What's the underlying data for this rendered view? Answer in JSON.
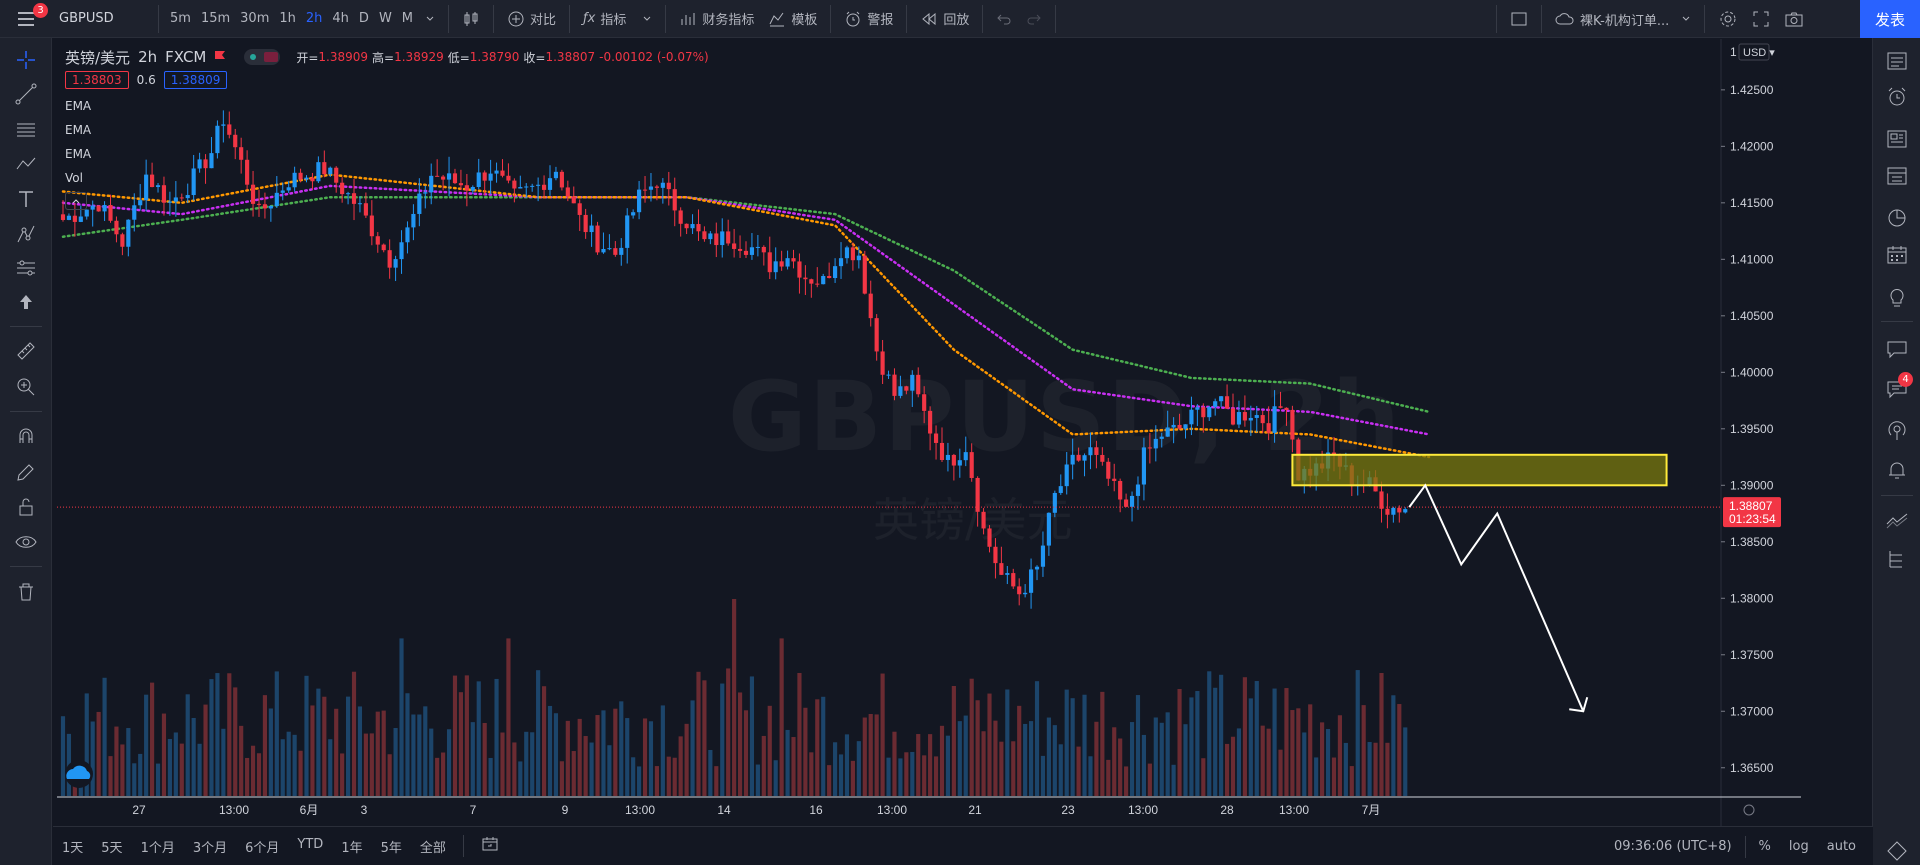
{
  "toolbar": {
    "menu_badge": "3",
    "symbol": "GBPUSD",
    "intervals": [
      "5m",
      "15m",
      "30m",
      "1h",
      "2h",
      "4h",
      "D",
      "W",
      "M"
    ],
    "active_interval": "2h",
    "compare": "对比",
    "indicators": "指标",
    "financials": "财务指标",
    "templates": "模板",
    "alert": "警报",
    "replay": "回放",
    "layout_name": "裸K-机构订单...",
    "publish": "发表"
  },
  "legend": {
    "symbol_name": "英镑/美元",
    "interval": "2h",
    "exchange": "FXCM",
    "open_label": "开=",
    "open": "1.38909",
    "high_label": "高=",
    "high": "1.38929",
    "low_label": "低=",
    "low": "1.38790",
    "close_label": "收=",
    "close": "1.38807",
    "change": "-0.00102 (-0.07%)",
    "bid": "1.38803",
    "spread": "0.6",
    "ask": "1.38809",
    "indicators": [
      "EMA",
      "EMA",
      "EMA",
      "Vol"
    ]
  },
  "watermark": {
    "symbol": "GBPUSD, 2h",
    "name": "英镑/美元"
  },
  "price_axis": {
    "currency": "USD",
    "scale_label": "1",
    "labels": [
      "1.42500",
      "1.42000",
      "1.41500",
      "1.41000",
      "1.40500",
      "1.40000",
      "1.39500",
      "1.39000",
      "1.38500",
      "1.38000",
      "1.37500",
      "1.37000",
      "1.36500"
    ],
    "current_price": "1.38807",
    "countdown": "01:23:54"
  },
  "time_axis": {
    "labels": [
      "27",
      "13:00",
      "6月",
      "3",
      "7",
      "9",
      "13:00",
      "14",
      "16",
      "13:00",
      "21",
      "23",
      "13:00",
      "28",
      "13:00",
      "7月"
    ]
  },
  "bottom": {
    "ranges": [
      "1天",
      "5天",
      "1个月",
      "3个月",
      "6个月",
      "YTD",
      "1年",
      "5年",
      "全部"
    ],
    "time": "09:36:06 (UTC+8)",
    "percent": "%",
    "log": "log",
    "auto": "auto"
  },
  "right_sidebar": {
    "notification_badge": "4"
  },
  "colors": {
    "up": "#2196f3",
    "down": "#f23645",
    "ema_fast": "#ff9800",
    "ema_mid": "#c82ff2",
    "ema_slow": "#4caf50",
    "zone_fill": "#7a7a0e",
    "zone_border": "#ffeb3b"
  },
  "chart_data": {
    "type": "candlestick",
    "symbol": "GBPUSD",
    "interval": "2h",
    "ylim": [
      1.3625,
      1.4295
    ],
    "close_path": [
      [
        0,
        1.4135
      ],
      [
        6,
        1.415
      ],
      [
        10,
        1.4115
      ],
      [
        14,
        1.4175
      ],
      [
        18,
        1.415
      ],
      [
        21,
        1.4165
      ],
      [
        25,
        1.4195
      ],
      [
        27,
        1.4225
      ],
      [
        30,
        1.4185
      ],
      [
        33,
        1.414
      ],
      [
        38,
        1.417
      ],
      [
        44,
        1.418
      ],
      [
        50,
        1.4145
      ],
      [
        55,
        1.41
      ],
      [
        58,
        1.4125
      ],
      [
        62,
        1.4175
      ],
      [
        68,
        1.4165
      ],
      [
        72,
        1.418
      ],
      [
        76,
        1.4155
      ],
      [
        80,
        1.4165
      ],
      [
        83,
        1.418
      ],
      [
        87,
        1.4135
      ],
      [
        90,
        1.4115
      ],
      [
        93,
        1.4105
      ],
      [
        97,
        1.4155
      ],
      [
        100,
        1.417
      ],
      [
        104,
        1.414
      ],
      [
        108,
        1.4115
      ],
      [
        112,
        1.412
      ],
      [
        116,
        1.411
      ],
      [
        119,
        1.4095
      ],
      [
        122,
        1.4105
      ],
      [
        125,
        1.4085
      ],
      [
        128,
        1.408
      ],
      [
        131,
        1.411
      ],
      [
        134,
        1.4105
      ],
      [
        137,
        1.402
      ],
      [
        140,
        1.398
      ],
      [
        143,
        1.399
      ],
      [
        146,
        1.395
      ],
      [
        149,
        1.392
      ],
      [
        152,
        1.3935
      ],
      [
        155,
        1.386
      ],
      [
        158,
        1.382
      ],
      [
        161,
        1.3805
      ],
      [
        164,
        1.3825
      ],
      [
        167,
        1.389
      ],
      [
        170,
        1.392
      ],
      [
        173,
        1.393
      ],
      [
        176,
        1.3905
      ],
      [
        179,
        1.3875
      ],
      [
        182,
        1.3925
      ],
      [
        185,
        1.3945
      ],
      [
        188,
        1.395
      ],
      [
        191,
        1.3965
      ],
      [
        194,
        1.3975
      ],
      [
        197,
        1.396
      ],
      [
        200,
        1.3965
      ],
      [
        203,
        1.3955
      ],
      [
        206,
        1.3975
      ],
      [
        208,
        1.391
      ],
      [
        211,
        1.3915
      ],
      [
        214,
        1.3925
      ],
      [
        217,
        1.3905
      ],
      [
        220,
        1.39
      ],
      [
        223,
        1.388
      ],
      [
        226,
        1.38807
      ]
    ],
    "ema_fast": [
      [
        0,
        1.416
      ],
      [
        20,
        1.415
      ],
      [
        45,
        1.4175
      ],
      [
        80,
        1.4155
      ],
      [
        105,
        1.4155
      ],
      [
        130,
        1.413
      ],
      [
        150,
        1.402
      ],
      [
        170,
        1.3945
      ],
      [
        190,
        1.395
      ],
      [
        210,
        1.3945
      ],
      [
        230,
        1.3925
      ]
    ],
    "ema_mid": [
      [
        0,
        1.415
      ],
      [
        20,
        1.414
      ],
      [
        45,
        1.4165
      ],
      [
        80,
        1.4155
      ],
      [
        105,
        1.4155
      ],
      [
        130,
        1.4135
      ],
      [
        150,
        1.406
      ],
      [
        170,
        1.3985
      ],
      [
        190,
        1.397
      ],
      [
        210,
        1.3965
      ],
      [
        230,
        1.3945
      ]
    ],
    "ema_slow": [
      [
        0,
        1.412
      ],
      [
        20,
        1.4135
      ],
      [
        45,
        1.4155
      ],
      [
        80,
        1.4155
      ],
      [
        105,
        1.4155
      ],
      [
        130,
        1.414
      ],
      [
        150,
        1.409
      ],
      [
        170,
        1.402
      ],
      [
        190,
        1.3995
      ],
      [
        210,
        1.399
      ],
      [
        230,
        1.3965
      ]
    ],
    "zone": {
      "price_top": 1.3927,
      "price_bottom": 1.39
    },
    "projection": [
      [
        1.38807
      ],
      [
        1.39
      ],
      [
        1.383
      ],
      [
        1.3875
      ],
      [
        1.37
      ]
    ],
    "volume_ylim": [
      0,
      1
    ]
  }
}
